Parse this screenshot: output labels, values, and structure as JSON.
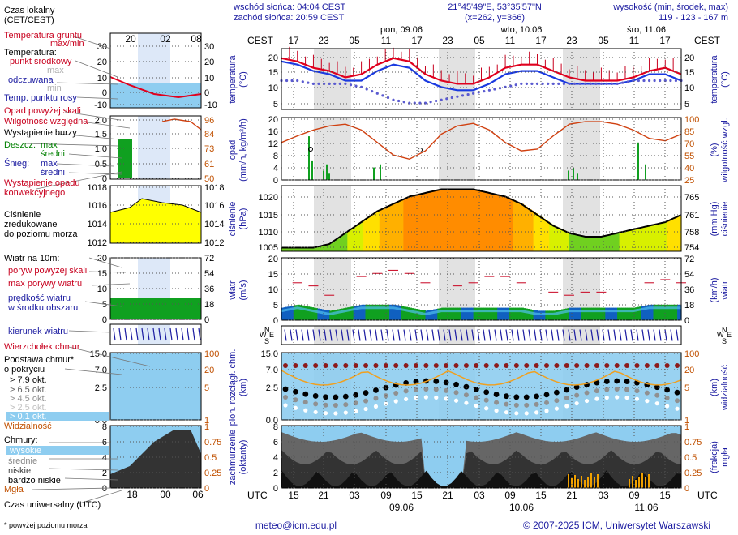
{
  "header": {
    "sunrise": "wschód słońca: 04:04 CEST",
    "sunset": "zachód słońca: 20:59 CEST",
    "coords": "21°45'49\"E, 53°35'57\"N",
    "grid": "(x=262, y=366)",
    "elev_label": "wysokość (min, środek, max)",
    "elev_values": "119 - 123 - 167 m"
  },
  "days": [
    {
      "label": "pon, 09.06"
    },
    {
      "label": "wto, 10.06"
    },
    {
      "label": "śro, 11.06"
    }
  ],
  "day_labels_bottom": [
    "09.06",
    "10.06",
    "11.06"
  ],
  "local_hours": [
    "17",
    "23",
    "05",
    "11",
    "17",
    "23",
    "05",
    "11",
    "17",
    "23",
    "05",
    "11",
    "17"
  ],
  "utc_hours": [
    "15",
    "21",
    "03",
    "09",
    "15",
    "21",
    "03",
    "09",
    "15",
    "21",
    "03",
    "09",
    "15"
  ],
  "tz_local": "CEST",
  "tz_utc": "UTC",
  "legend": {
    "time_local": "Czas lokalny\n(CET/CEST)",
    "time_local_ticks": [
      "20",
      "02",
      "08"
    ],
    "time_utc": "Czas uniwersalny (UTC)",
    "time_utc_ticks": [
      "18",
      "00",
      "06"
    ],
    "soil_temp": "Temperatura gruntu",
    "maxmin": "max/min",
    "temperature": "Temperatura:",
    "center": "punkt środkowy",
    "max_min_small": [
      "max",
      "min"
    ],
    "felt": "odczuwana",
    "dewpoint": "Temp. punktu rosy",
    "precip_above": "Opad powyżej skali",
    "humidity": "Wilgotność względna",
    "storm": "Wystąpienie burzy",
    "rain": "Deszcz:",
    "snow": "Śnieg:",
    "max": "max",
    "mean": "średni",
    "conv": "Wystąpienie opadu\nkonwekcyjnego",
    "pressure": "Ciśnienie\nzredukowane\ndo poziomu morza",
    "wind10": "Wiatr na 10m:",
    "gust_above": "poryw powyżej skali",
    "gust_max": "max porywy wiatru",
    "wind_mean": "prędkość wiatru\nw środku obszaru",
    "wind_dir": "kierunek wiatru",
    "cloud_top": "Wierzchołek chmur",
    "cloud_base": "Podstawa chmur*\no pokryciu",
    "okt": [
      "> 7.9 okt.",
      "> 6.5 okt.",
      "> 4.5 okt.",
      "> 2.5 okt.",
      "> 0.1 okt."
    ],
    "visibility": "Widzialność",
    "clouds": "Chmury:",
    "high": "wysokie",
    "mid": "średnie",
    "low": "niskie",
    "vlow": "bardzo niskie",
    "fog": "Mgła",
    "footnote": "* powyżej poziomu morza"
  },
  "axes": {
    "temp": "temperatura\n(°C)",
    "precip": "opad\n(mm/h, kg/m²/h)",
    "humidity": "wilgotność wzgl.\n(%)",
    "pressure": "ciśnienie\n(hPa)",
    "pressure_mm": "(mm Hg)\nciśnienie",
    "wind": "wiatr\n(m/s)",
    "wind_kmh": "(km/h)\nwiatr",
    "cloudbase": "pion. rozciągł. chm.\n(km)",
    "visibility": "(km)\nwidzialność",
    "cover": "zachmurzenie\n(oktanty)",
    "fog": "(frakcja)\nmgła",
    "compass": [
      "N",
      "W",
      "E",
      "S"
    ]
  },
  "ticks": {
    "temp": [
      "20",
      "15",
      "10",
      "5"
    ],
    "precip": [
      "20",
      "16",
      "12",
      "8",
      "4",
      "0"
    ],
    "hum": [
      "100",
      "85",
      "70",
      "55",
      "40",
      "25"
    ],
    "press": [
      "1020",
      "1015",
      "1010",
      "1005"
    ],
    "press_mm": [
      "765",
      "761",
      "758",
      "754"
    ],
    "wind": [
      "20",
      "15",
      "10",
      "5",
      "0"
    ],
    "wind_kmh": [
      "72",
      "54",
      "36",
      "18",
      "0"
    ],
    "cb": [
      "15.0",
      "7.0",
      "2.5",
      "0.0"
    ],
    "vis": [
      "100",
      "20",
      "5",
      "1",
      "0"
    ],
    "cov": [
      "8",
      "6",
      "4",
      "2",
      "0"
    ],
    "fog": [
      "1",
      "0.75",
      "0.5",
      "0.25",
      "0"
    ],
    "leg_temp": [
      "30",
      "20",
      "10",
      "0",
      "-10"
    ],
    "leg_prec": [
      "2.0",
      "1.5",
      "1.0",
      "0.5",
      "0"
    ],
    "leg_hum": [
      "96",
      "84",
      "73",
      "61",
      "50"
    ],
    "leg_press": [
      "1018",
      "1016",
      "1014",
      "1012"
    ],
    "leg_wind": [
      "20",
      "15",
      "10",
      "5",
      "0"
    ],
    "leg_wind_kmh": [
      "72",
      "54",
      "36",
      "18",
      "0"
    ],
    "leg_cb": [
      "15.0",
      "7.0",
      "2.5",
      "0.0"
    ],
    "leg_vis": [
      "100",
      "20",
      "5",
      "1",
      "0"
    ],
    "leg_cov": [
      "8",
      "6",
      "4",
      "2",
      "0"
    ],
    "leg_fog": [
      "1",
      "0.75",
      "0.5",
      "0.25",
      "0"
    ]
  },
  "footer": {
    "email": "meteo@icm.edu.pl",
    "copyright": "© 2007-2025 ICM, Uniwersytet Warszawski"
  },
  "chart_data": {
    "type": "line",
    "x_utc_hours": [
      15,
      18,
      21,
      0,
      3,
      6,
      9,
      12,
      15,
      18,
      21,
      0,
      3,
      6,
      9,
      12,
      15,
      18,
      21,
      0,
      3,
      6,
      9,
      12,
      15,
      18
    ],
    "series": [
      {
        "name": "punkt środkowy",
        "values": [
          19,
          18,
          16,
          15,
          13,
          14,
          17,
          19,
          18,
          14,
          12,
          11,
          11,
          13,
          16,
          17,
          17,
          15,
          13,
          12,
          12,
          12,
          13,
          15,
          16,
          14
        ]
      },
      {
        "name": "odczuwana",
        "values": [
          18,
          17,
          15,
          14,
          12,
          12,
          15,
          17,
          16,
          12,
          10,
          9,
          9,
          11,
          14,
          15,
          15,
          13,
          11,
          11,
          11,
          11,
          12,
          14,
          14,
          12
        ]
      },
      {
        "name": "Temp. punktu rosy",
        "values": [
          12,
          12,
          11,
          11,
          11,
          10,
          8,
          6,
          5,
          5,
          6,
          7,
          8,
          9,
          10,
          11,
          11,
          11,
          11,
          11,
          11,
          11,
          12,
          12,
          12,
          12
        ]
      },
      {
        "name": "Wilgotność względna",
        "values": [
          70,
          78,
          85,
          90,
          92,
          85,
          70,
          55,
          50,
          60,
          80,
          90,
          93,
          85,
          70,
          60,
          62,
          78,
          92,
          95,
          95,
          92,
          85,
          75,
          72,
          80
        ]
      },
      {
        "name": "Ciśnienie",
        "values": [
          1006,
          1006,
          1006,
          1007,
          1010,
          1013,
          1016,
          1018,
          1020,
          1021,
          1022,
          1022,
          1022,
          1021,
          1020,
          1018,
          1015,
          1012,
          1010,
          1009,
          1009,
          1010,
          1011,
          1012,
          1013,
          1015
        ]
      },
      {
        "name": "prędkość wiatru",
        "values": [
          4,
          5,
          4,
          3,
          4,
          5,
          5,
          5,
          4,
          3,
          4,
          4,
          4,
          4,
          4,
          4,
          3,
          3,
          4,
          4,
          4,
          4,
          4,
          5,
          5,
          5
        ]
      },
      {
        "name": "max porywy wiatru",
        "values": [
          10,
          12,
          11,
          8,
          10,
          14,
          15,
          16,
          15,
          12,
          10,
          11,
          12,
          14,
          14,
          12,
          10,
          9,
          8,
          9,
          9,
          10,
          10,
          12,
          13,
          12
        ]
      }
    ],
    "ylim_temp": [
      3,
      22
    ],
    "ylim_precip": [
      0,
      20
    ],
    "ylim_press": [
      1005,
      1023
    ],
    "ylim_wind": [
      0,
      20
    ]
  },
  "colors": {
    "night": "#e2e2e2",
    "cloudbg": "#8ecdf0",
    "wind_green": "#10a020",
    "wind_blue": "#1060c0",
    "press_yellow": "#ffff00",
    "press_orange": "#ff9000"
  }
}
